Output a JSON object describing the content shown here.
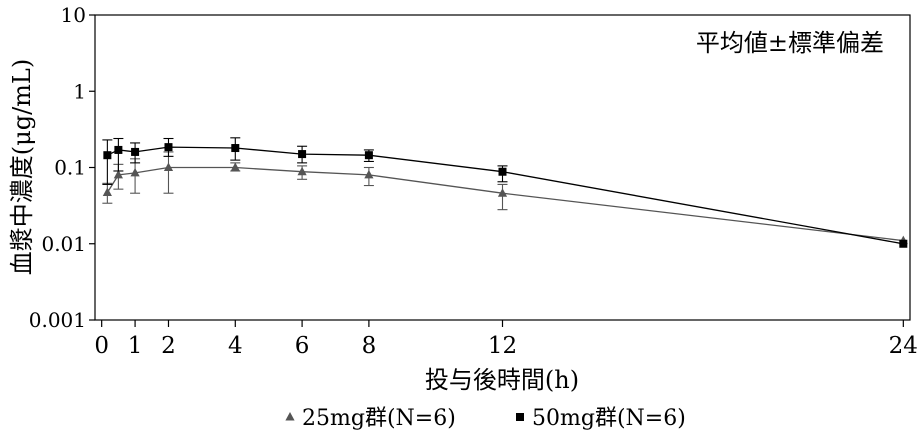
{
  "chart_data": {
    "type": "line",
    "xlabel": "投与後時間(h)",
    "ylabel": "血漿中濃度(μg/mL)",
    "annotation": "平均値±標準偏差",
    "yscale": "log",
    "xlim": [
      -0.2,
      24.2
    ],
    "ylim": [
      0.001,
      10
    ],
    "x_ticks": [
      0,
      1,
      2,
      4,
      6,
      8,
      12,
      24
    ],
    "y_ticks": [
      0.001,
      0.01,
      0.1,
      1,
      10
    ],
    "y_tick_labels": [
      "0.001",
      "0.01",
      "0.1",
      "1",
      "10"
    ],
    "grid": false,
    "legend_position": "bottom",
    "series": [
      {
        "name": "25mg群(N=6)",
        "marker": "triangle",
        "color": "#555555",
        "x": [
          0.17,
          0.5,
          1,
          2,
          4,
          6,
          8,
          12,
          24
        ],
        "y": [
          0.047,
          0.08,
          0.085,
          0.1,
          0.1,
          0.088,
          0.08,
          0.046,
          0.011
        ],
        "err_low": [
          0.034,
          0.052,
          0.046,
          0.046,
          0.09,
          0.07,
          0.058,
          0.028,
          null
        ],
        "err_high": [
          0.062,
          0.11,
          0.13,
          0.16,
          0.115,
          0.105,
          0.1,
          0.06,
          null
        ]
      },
      {
        "name": "50mg群(N=6)",
        "marker": "square",
        "color": "#000000",
        "x": [
          0.17,
          0.5,
          1,
          2,
          4,
          6,
          8,
          12,
          24
        ],
        "y": [
          0.145,
          0.17,
          0.16,
          0.185,
          0.18,
          0.15,
          0.145,
          0.088,
          0.01
        ],
        "err_low": [
          0.06,
          0.09,
          0.115,
          0.14,
          0.125,
          0.115,
          0.12,
          0.065,
          null
        ],
        "err_high": [
          0.23,
          0.24,
          0.21,
          0.24,
          0.245,
          0.19,
          0.17,
          0.105,
          null
        ]
      }
    ]
  }
}
